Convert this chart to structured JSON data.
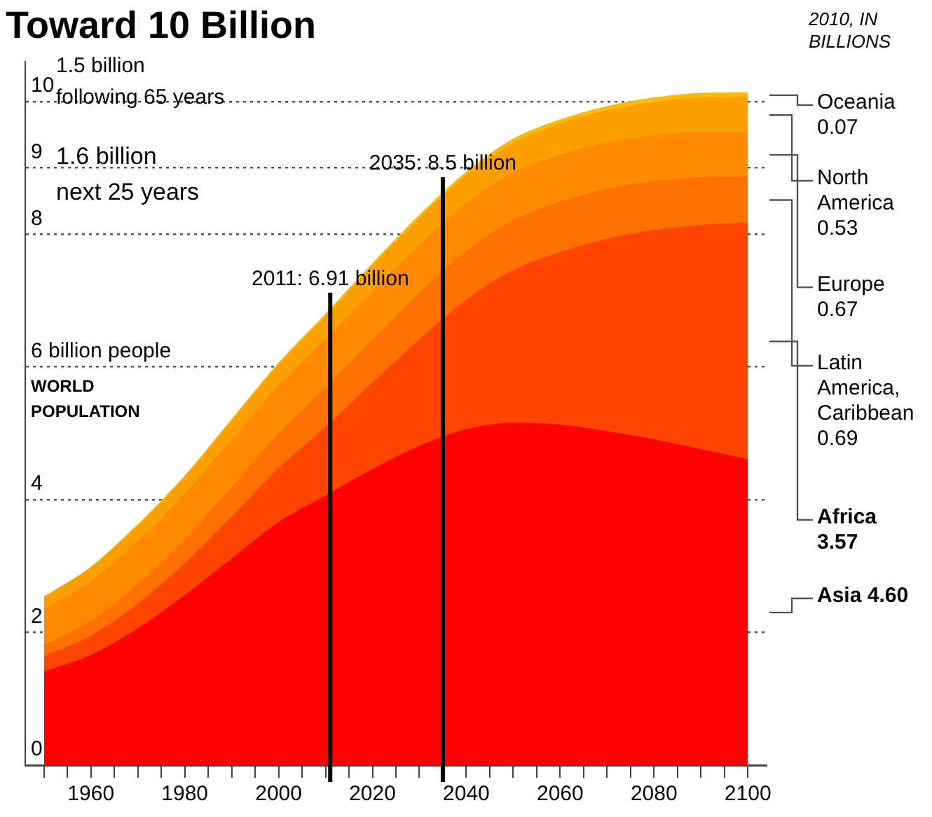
{
  "chart_data": {
    "type": "area",
    "title": "Toward 10 Billion",
    "legend_title": "2010, IN BILLIONS",
    "stacked": true,
    "legend": "right",
    "marker": "none",
    "grid": "y",
    "line_style": "solid",
    "x": [
      1950,
      1960,
      1970,
      1980,
      1990,
      2000,
      2010,
      2020,
      2030,
      2040,
      2050,
      2060,
      2070,
      2080,
      2090,
      2100
    ],
    "series": [
      {
        "name": "Asia 4.60",
        "color": "#ff0000",
        "values": [
          1.4,
          1.65,
          2.05,
          2.55,
          3.1,
          3.65,
          4.05,
          4.45,
          4.8,
          5.05,
          5.15,
          5.12,
          5.02,
          4.9,
          4.75,
          4.6
        ]
      },
      {
        "name": "Africa 3.57",
        "color": "#fe4500",
        "values": [
          0.23,
          0.29,
          0.37,
          0.48,
          0.63,
          0.81,
          1.03,
          1.3,
          1.6,
          1.95,
          2.3,
          2.6,
          2.9,
          3.15,
          3.38,
          3.57
        ]
      },
      {
        "name": "Latin America, Caribbean 0.69",
        "color": "#fe7000",
        "values": [
          0.17,
          0.22,
          0.29,
          0.36,
          0.44,
          0.52,
          0.59,
          0.65,
          0.7,
          0.73,
          0.75,
          0.76,
          0.75,
          0.74,
          0.72,
          0.69
        ]
      },
      {
        "name": "Europe 0.67",
        "color": "#fd8a00",
        "values": [
          0.55,
          0.6,
          0.66,
          0.69,
          0.72,
          0.73,
          0.74,
          0.74,
          0.73,
          0.72,
          0.72,
          0.71,
          0.7,
          0.69,
          0.68,
          0.67
        ]
      },
      {
        "name": "North America 0.53",
        "color": "#fca000",
        "values": [
          0.17,
          0.2,
          0.23,
          0.25,
          0.28,
          0.31,
          0.34,
          0.37,
          0.4,
          0.43,
          0.45,
          0.47,
          0.49,
          0.5,
          0.52,
          0.53
        ]
      },
      {
        "name": "Oceania 0.07",
        "color": "#fbbc00",
        "values": [
          0.01,
          0.02,
          0.02,
          0.02,
          0.03,
          0.03,
          0.04,
          0.04,
          0.05,
          0.05,
          0.06,
          0.06,
          0.06,
          0.07,
          0.07,
          0.07
        ]
      }
    ],
    "xlim": [
      1946,
      2104
    ],
    "xticks": [
      {
        "value": 1950,
        "label": null
      },
      {
        "value": 1955,
        "label": null
      },
      1960,
      {
        "value": 1965,
        "label": null
      },
      {
        "value": 1970,
        "label": null
      },
      {
        "value": 1975,
        "label": null
      },
      1980,
      {
        "value": 1985,
        "label": null
      },
      {
        "value": 1990,
        "label": null
      },
      {
        "value": 1995,
        "label": null
      },
      2000,
      {
        "value": 2005,
        "label": null
      },
      {
        "value": 2010,
        "label": null
      },
      {
        "value": 2015,
        "label": null
      },
      2020,
      {
        "value": 2025,
        "label": null
      },
      {
        "value": 2030,
        "label": null
      },
      {
        "value": 2035,
        "label": null
      },
      2040,
      {
        "value": 2045,
        "label": null
      },
      {
        "value": 2050,
        "label": null
      },
      {
        "value": 2055,
        "label": null
      },
      2060,
      {
        "value": 2065,
        "label": null
      },
      {
        "value": 2070,
        "label": null
      },
      {
        "value": 2075,
        "label": null
      },
      2080,
      {
        "value": 2085,
        "label": null
      },
      {
        "value": 2090,
        "label": null
      },
      {
        "value": 2095,
        "label": null
      },
      2100
    ],
    "ylim": [
      0,
      10.6
    ],
    "yticks": [
      0,
      2,
      4,
      {
        "value": 6,
        "label": "6 billion people"
      },
      8,
      9,
      10
    ],
    "ref_lines": [
      {
        "axis": "x",
        "value": 2011,
        "label": "2011: 6.91 billion",
        "color": "#000000"
      },
      {
        "axis": "x",
        "value": 2035,
        "label": "2035: 8.5 billion",
        "color": "#000000"
      }
    ],
    "annotations": [
      "1.5 billion following 65 years",
      "1.6 billion next 25 years",
      "WORLD POPULATION"
    ]
  }
}
